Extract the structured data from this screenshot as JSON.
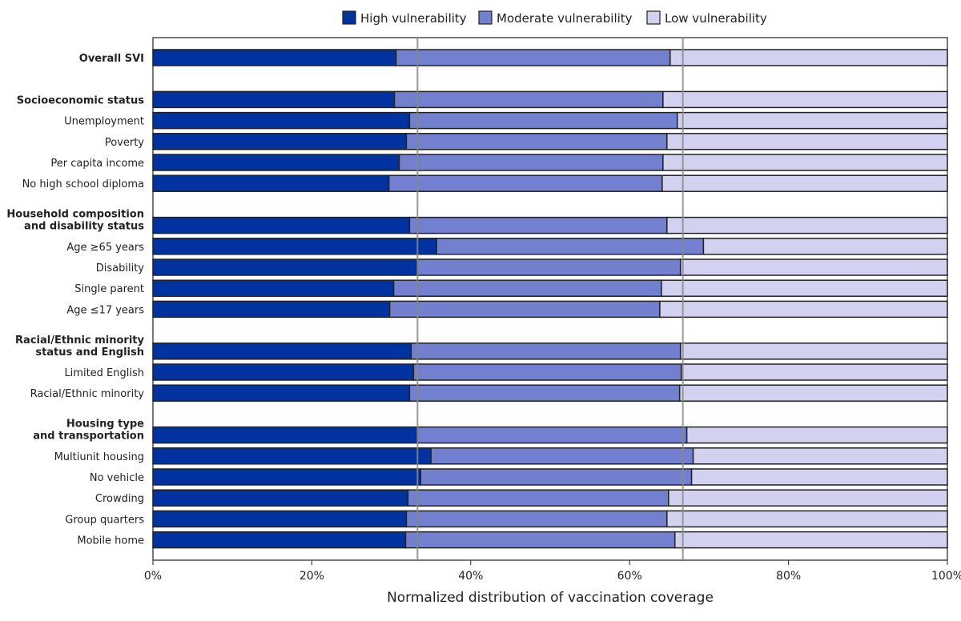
{
  "chart_data": {
    "type": "bar",
    "orientation": "horizontal",
    "stacked": true,
    "xlabel": "Normalized distribution of vaccination coverage",
    "xlim": [
      0,
      100
    ],
    "xticks": [
      "0%",
      "20%",
      "40%",
      "60%",
      "80%",
      "100%"
    ],
    "reference_lines": [
      33.3,
      66.7
    ],
    "legend_position": "top",
    "series": [
      {
        "name": "High vulnerability",
        "color": "#0033a0"
      },
      {
        "name": "Moderate vulnerability",
        "color": "#7380cf"
      },
      {
        "name": "Low vulnerability",
        "color": "#d2d2f0"
      }
    ],
    "categories": [
      {
        "label": "Overall SVI",
        "bold": true,
        "values": [
          30.6,
          34.5,
          34.9
        ]
      },
      {
        "gap": true
      },
      {
        "label": "Socioeconomic status",
        "bold": true,
        "values": [
          30.4,
          33.8,
          35.8
        ]
      },
      {
        "label": "Unemployment",
        "values": [
          32.3,
          33.7,
          34.0
        ]
      },
      {
        "label": "Poverty",
        "values": [
          31.9,
          32.8,
          35.3
        ]
      },
      {
        "label": "Per capita income",
        "values": [
          31.0,
          33.2,
          35.8
        ]
      },
      {
        "label": "No high school diploma",
        "values": [
          29.7,
          34.4,
          35.9
        ]
      },
      {
        "gap": true
      },
      {
        "label": "Household composition\nand disability status",
        "bold": true,
        "values": [
          32.3,
          32.4,
          35.3
        ]
      },
      {
        "label": "Age ≥65 years",
        "values": [
          35.7,
          33.6,
          30.7
        ]
      },
      {
        "label": "Disability",
        "values": [
          33.3,
          33.1,
          33.6
        ]
      },
      {
        "label": "Single parent",
        "values": [
          30.3,
          33.7,
          36.0
        ]
      },
      {
        "label": "Age ≤17 years",
        "values": [
          29.8,
          34.0,
          36.2
        ]
      },
      {
        "gap": true
      },
      {
        "label": "Racial/Ethnic minority\nstatus and English",
        "bold": true,
        "values": [
          32.5,
          33.9,
          33.6
        ]
      },
      {
        "label": "Limited English",
        "values": [
          32.8,
          33.7,
          33.5
        ]
      },
      {
        "label": "Racial/Ethnic minority",
        "values": [
          32.3,
          34.0,
          33.7
        ]
      },
      {
        "gap": true
      },
      {
        "label": "Housing type\nand transportation",
        "bold": true,
        "values": [
          33.3,
          33.9,
          32.8
        ]
      },
      {
        "label": "Multiunit housing",
        "values": [
          35.0,
          33.0,
          32.0
        ]
      },
      {
        "label": "No vehicle",
        "values": [
          33.7,
          34.1,
          32.2
        ]
      },
      {
        "label": "Crowding",
        "values": [
          32.1,
          32.8,
          35.1
        ]
      },
      {
        "label": "Group quarters",
        "values": [
          31.9,
          32.8,
          35.3
        ]
      },
      {
        "label": "Mobile home",
        "values": [
          31.8,
          33.9,
          34.3
        ]
      }
    ]
  }
}
